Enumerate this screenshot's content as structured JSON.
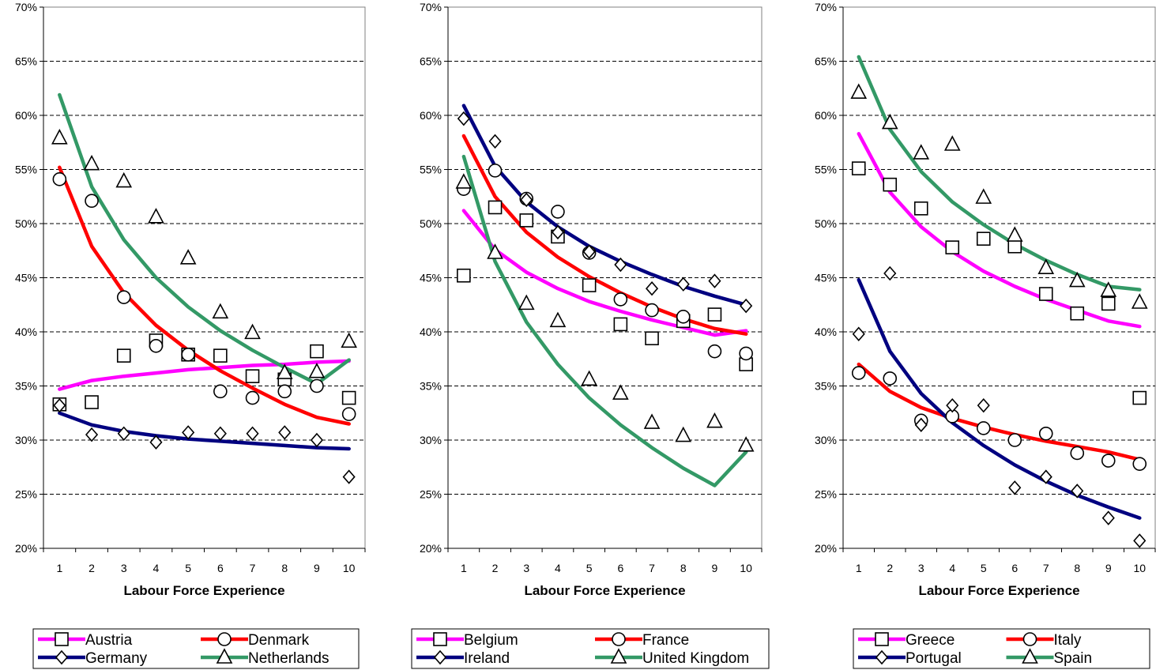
{
  "colors": {
    "magenta": "#FF00FF",
    "red": "#FF0000",
    "navy": "#000080",
    "green": "#339966"
  },
  "chart_data": [
    {
      "type": "scatter",
      "xlabel": "Labour Force Experience",
      "ylabel": "",
      "x": [
        1,
        2,
        3,
        4,
        5,
        6,
        7,
        8,
        9,
        10
      ],
      "ylim": [
        20,
        70
      ],
      "ytick_labels": [
        "20%",
        "25%",
        "30%",
        "35%",
        "40%",
        "45%",
        "50%",
        "55%",
        "60%",
        "65%",
        "70%"
      ],
      "xtick_labels": [
        "1",
        "2",
        "3",
        "4",
        "5",
        "6",
        "7",
        "8",
        "9",
        "10"
      ],
      "grid": "horizontal dashed",
      "legend_position": "bottom",
      "series": [
        {
          "name": "Austria",
          "marker": "square",
          "color": "#FF00FF",
          "values": [
            33.3,
            33.5,
            37.8,
            39.2,
            37.9,
            37.8,
            35.9,
            35.6,
            38.2,
            33.9
          ],
          "fit": [
            34.7,
            35.5,
            35.9,
            36.2,
            36.5,
            36.7,
            36.9,
            37.0,
            37.2,
            37.3
          ]
        },
        {
          "name": "Denmark",
          "marker": "circle",
          "color": "#FF0000",
          "values": [
            54.1,
            52.1,
            43.2,
            38.7,
            37.9,
            34.5,
            33.9,
            34.5,
            35.0,
            32.4
          ],
          "fit": [
            55.2,
            47.9,
            43.6,
            40.6,
            38.3,
            36.4,
            34.8,
            33.3,
            32.1,
            31.5
          ]
        },
        {
          "name": "Germany",
          "marker": "diamond",
          "color": "#000080",
          "values": [
            33.2,
            30.5,
            30.6,
            29.8,
            30.7,
            30.6,
            30.6,
            30.7,
            30.0,
            26.6
          ],
          "fit": [
            32.5,
            31.4,
            30.8,
            30.4,
            30.1,
            29.9,
            29.7,
            29.5,
            29.3,
            29.2
          ]
        },
        {
          "name": "Netherlands",
          "marker": "triangle",
          "color": "#339966",
          "values": [
            57.9,
            55.5,
            53.9,
            50.6,
            46.8,
            41.8,
            39.9,
            36.2,
            36.3,
            39.1
          ],
          "fit": [
            61.9,
            53.4,
            48.5,
            45.0,
            42.3,
            40.1,
            38.3,
            36.7,
            35.2,
            37.4
          ]
        }
      ]
    },
    {
      "type": "scatter",
      "xlabel": "Labour Force Experience",
      "ylabel": "",
      "x": [
        1,
        2,
        3,
        4,
        5,
        6,
        7,
        8,
        9,
        10
      ],
      "ylim": [
        20,
        70
      ],
      "ytick_labels": [
        "20%",
        "25%",
        "30%",
        "35%",
        "40%",
        "45%",
        "50%",
        "55%",
        "60%",
        "65%",
        "70%"
      ],
      "xtick_labels": [
        "1",
        "2",
        "3",
        "4",
        "5",
        "6",
        "7",
        "8",
        "9",
        "10"
      ],
      "grid": "horizontal dashed",
      "legend_position": "bottom",
      "series": [
        {
          "name": "Belgium",
          "marker": "square",
          "color": "#FF00FF",
          "values": [
            45.2,
            51.5,
            50.3,
            48.8,
            44.3,
            40.7,
            39.4,
            41.0,
            41.6,
            37.0
          ],
          "fit": [
            51.2,
            47.6,
            45.5,
            44.0,
            42.8,
            41.9,
            41.1,
            40.4,
            39.7,
            40.1
          ]
        },
        {
          "name": "France",
          "marker": "circle",
          "color": "#FF0000",
          "values": [
            53.2,
            54.9,
            52.3,
            51.1,
            47.3,
            43.0,
            42.0,
            41.4,
            38.2,
            38.0
          ],
          "fit": [
            58.1,
            52.5,
            49.2,
            46.9,
            45.1,
            43.6,
            42.3,
            41.2,
            40.3,
            39.8
          ]
        },
        {
          "name": "Ireland",
          "marker": "diamond",
          "color": "#000080",
          "values": [
            59.7,
            57.6,
            52.2,
            49.2,
            47.4,
            46.2,
            44.0,
            44.4,
            44.7,
            42.4
          ],
          "fit": [
            60.9,
            55.3,
            52.0,
            49.7,
            47.9,
            46.5,
            45.3,
            44.2,
            43.3,
            42.5
          ]
        },
        {
          "name": "United Kingdom",
          "marker": "triangle",
          "color": "#339966",
          "values": [
            53.8,
            47.3,
            42.6,
            41.0,
            35.6,
            34.3,
            31.6,
            30.4,
            31.7,
            29.5
          ],
          "fit": [
            56.2,
            46.5,
            40.9,
            37.0,
            33.9,
            31.4,
            29.3,
            27.4,
            25.8,
            28.9
          ]
        }
      ]
    },
    {
      "type": "scatter",
      "xlabel": "Labour Force Experience",
      "ylabel": "",
      "x": [
        1,
        2,
        3,
        4,
        5,
        6,
        7,
        8,
        9,
        10
      ],
      "ylim": [
        20,
        70
      ],
      "ytick_labels": [
        "20%",
        "25%",
        "30%",
        "35%",
        "40%",
        "45%",
        "50%",
        "55%",
        "60%",
        "65%",
        "70%"
      ],
      "xtick_labels": [
        "1",
        "2",
        "3",
        "4",
        "5",
        "6",
        "7",
        "8",
        "9",
        "10"
      ],
      "grid": "horizontal dashed",
      "legend_position": "bottom",
      "series": [
        {
          "name": "Greece",
          "marker": "square",
          "color": "#FF00FF",
          "values": [
            55.1,
            53.6,
            51.4,
            47.8,
            48.6,
            47.9,
            43.5,
            41.7,
            42.6,
            33.9
          ],
          "fit": [
            58.3,
            52.9,
            49.7,
            47.4,
            45.6,
            44.2,
            43.0,
            42.0,
            41.0,
            40.5
          ]
        },
        {
          "name": "Italy",
          "marker": "circle",
          "color": "#FF0000",
          "values": [
            36.2,
            35.7,
            31.8,
            32.2,
            31.1,
            30.0,
            30.6,
            28.8,
            28.1,
            27.8
          ],
          "fit": [
            37.0,
            34.5,
            33.0,
            32.0,
            31.2,
            30.5,
            29.9,
            29.4,
            28.9,
            28.2
          ]
        },
        {
          "name": "Portugal",
          "marker": "diamond",
          "color": "#000080",
          "values": [
            39.8,
            45.4,
            31.4,
            33.2,
            33.2,
            25.6,
            26.6,
            25.3,
            22.8,
            20.7
          ],
          "fit": [
            44.8,
            38.2,
            34.3,
            31.6,
            29.5,
            27.7,
            26.2,
            24.9,
            23.8,
            22.8
          ]
        },
        {
          "name": "Spain",
          "marker": "triangle",
          "color": "#339966",
          "values": [
            62.1,
            59.3,
            56.5,
            57.3,
            52.4,
            48.9,
            45.9,
            44.7,
            43.8,
            42.7
          ],
          "fit": [
            65.4,
            58.7,
            54.8,
            52.0,
            49.9,
            48.1,
            46.6,
            45.3,
            44.2,
            43.9
          ]
        }
      ]
    }
  ]
}
